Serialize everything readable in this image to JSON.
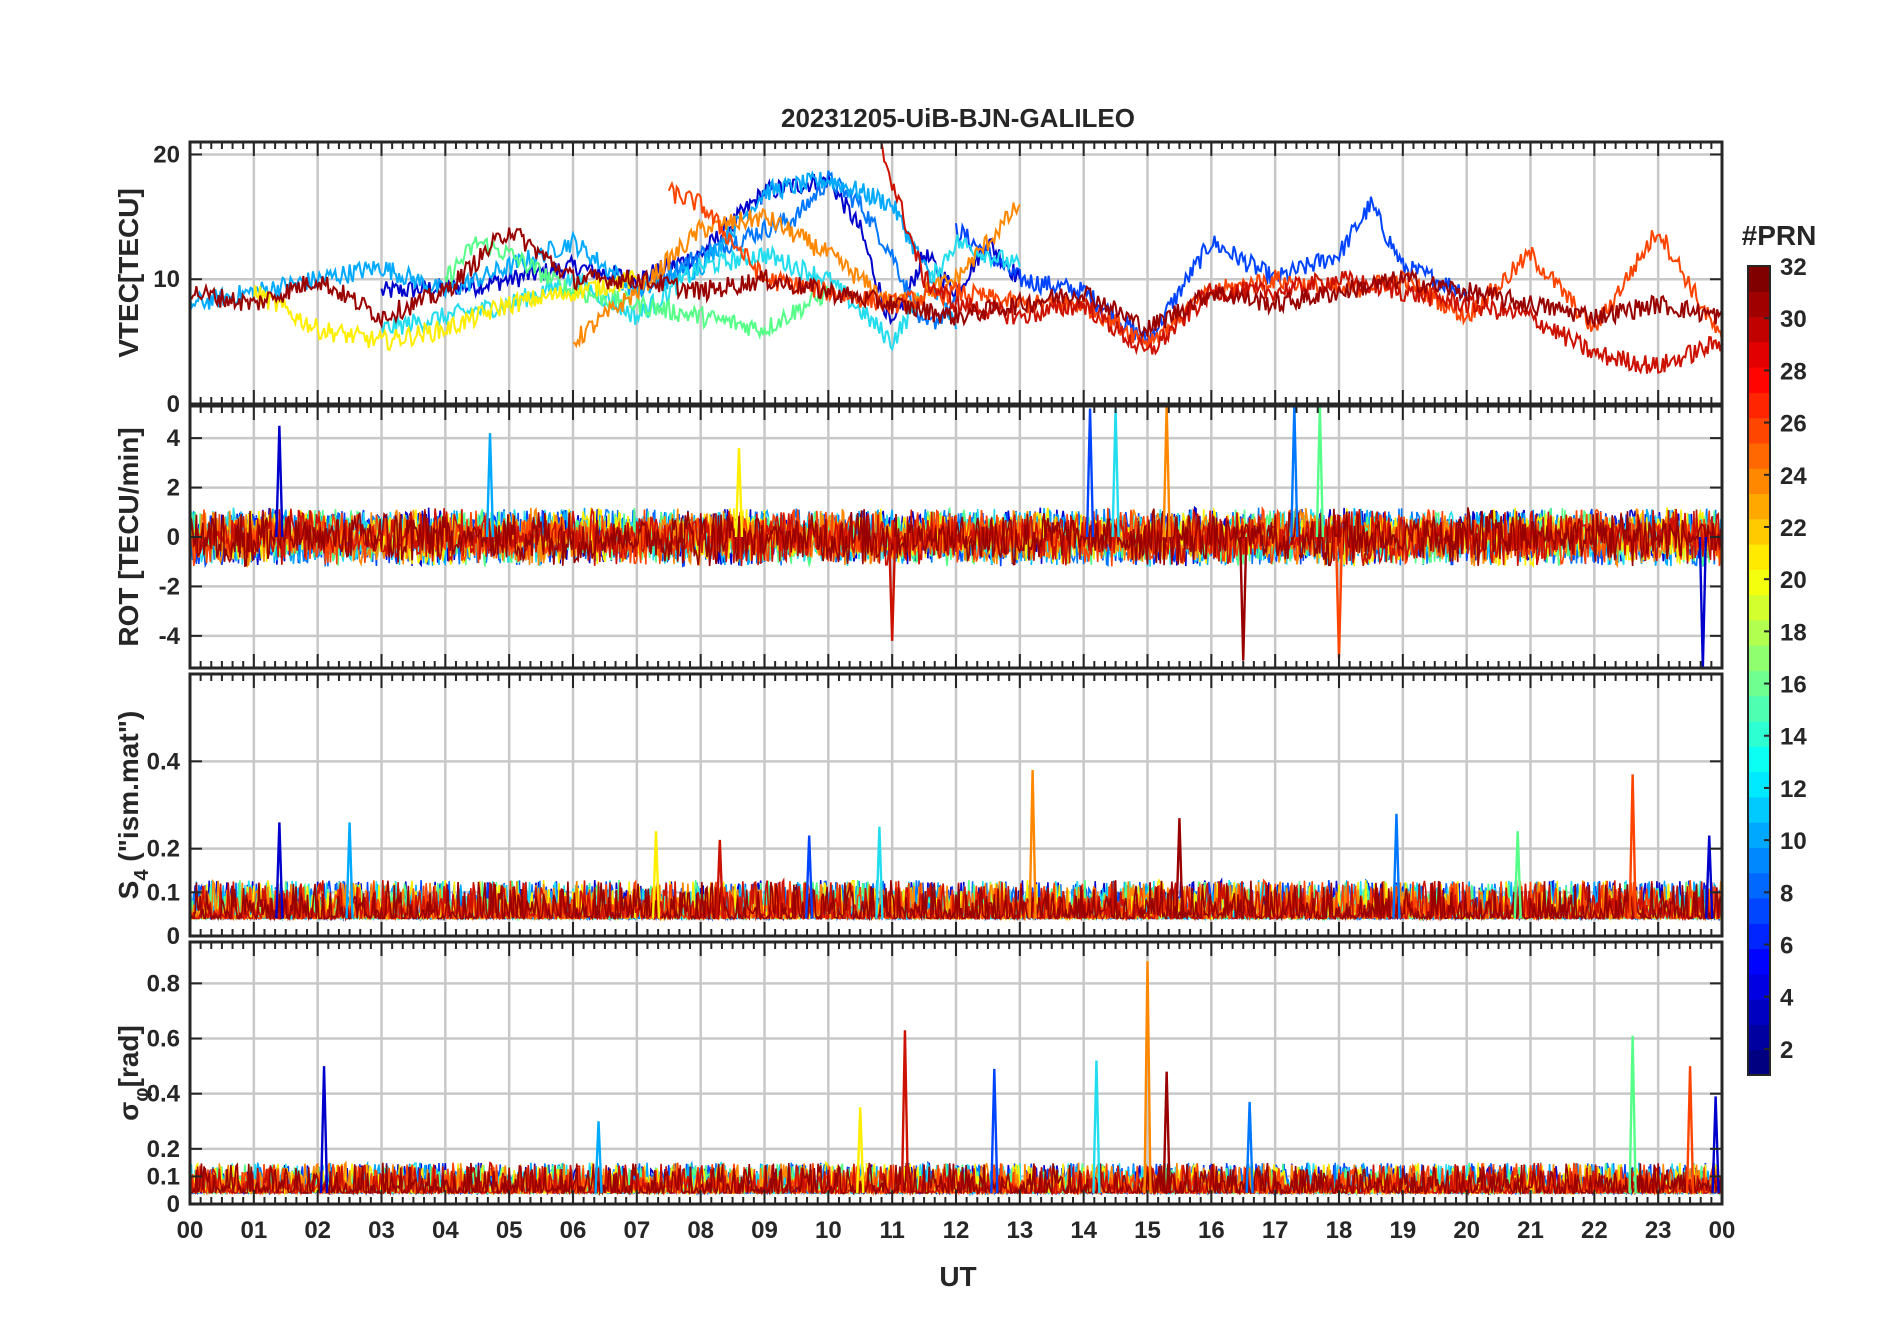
{
  "chart_data": {
    "type": "line",
    "title": "20231205-UiB-BJN-GALILEO",
    "xlabel": "UT",
    "x_tick_labels": [
      "00",
      "01",
      "02",
      "03",
      "04",
      "05",
      "06",
      "07",
      "08",
      "09",
      "10",
      "11",
      "12",
      "13",
      "14",
      "15",
      "16",
      "17",
      "18",
      "19",
      "20",
      "21",
      "22",
      "23",
      "00"
    ],
    "xlim": [
      0,
      24
    ],
    "grid": true,
    "colorbar": {
      "label": "#PRN",
      "range": [
        1,
        32
      ],
      "ticks": [
        2,
        4,
        6,
        8,
        10,
        12,
        14,
        16,
        18,
        20,
        22,
        24,
        26,
        28,
        30,
        32
      ],
      "colormap": "jet"
    },
    "panels": [
      {
        "ylabel": "VTEC[TECU]",
        "ylim": [
          0,
          21
        ],
        "yticks": [
          0,
          10,
          20
        ],
        "series": [
          {
            "prn": 2,
            "color": "#0000cc",
            "hours": [
              3,
              4.5,
              6,
              7,
              8,
              9,
              10,
              10.5,
              11,
              11.5,
              12,
              12.5,
              13
            ],
            "values": [
              9,
              9.5,
              11,
              10,
              12,
              17,
              18,
              14,
              6,
              12,
              9,
              13,
              10
            ]
          },
          {
            "prn": 5,
            "color": "#0044ff",
            "hours": [
              12,
              13,
              14,
              15,
              16,
              17,
              18,
              18.5,
              19,
              20
            ],
            "values": [
              14,
              10,
              9,
              5,
              13,
              10,
              12,
              16,
              11,
              9
            ]
          },
          {
            "prn": 7,
            "color": "#0077ff",
            "hours": [
              7,
              8,
              9,
              9.5,
              10,
              10.5,
              11,
              11.5,
              12
            ],
            "values": [
              9,
              12,
              14,
              15,
              18,
              16,
              12,
              6,
              8
            ]
          },
          {
            "prn": 10,
            "color": "#00aaff",
            "hours": [
              0,
              1,
              2,
              3,
              4,
              5,
              6,
              7,
              8,
              9,
              10,
              11,
              12
            ],
            "values": [
              8,
              9,
              10,
              11,
              9,
              11,
              13,
              9,
              11,
              17,
              18,
              16,
              6
            ]
          },
          {
            "prn": 12,
            "color": "#22ddee",
            "hours": [
              3,
              4,
              5,
              6,
              7,
              8,
              9,
              10,
              11,
              12,
              13
            ],
            "values": [
              6,
              7,
              8,
              10,
              7,
              11,
              12,
              10,
              5,
              13,
              11
            ]
          },
          {
            "prn": 15,
            "color": "#55ff88",
            "hours": [
              4,
              4.5,
              5,
              6,
              7,
              8,
              9,
              10
            ],
            "values": [
              10,
              13,
              12,
              9,
              8,
              7,
              6,
              9
            ]
          },
          {
            "prn": 20,
            "color": "#ffee00",
            "hours": [
              1,
              2,
              3,
              4,
              5,
              6,
              7
            ],
            "values": [
              9,
              6,
              5,
              6,
              8,
              9,
              10
            ]
          },
          {
            "prn": 24,
            "color": "#ff8800",
            "hours": [
              6,
              7,
              8,
              9,
              10,
              11,
              12,
              13
            ],
            "values": [
              5,
              9,
              14,
              15,
              12,
              8,
              10,
              16
            ]
          },
          {
            "prn": 26,
            "color": "#ff4400",
            "hours": [
              7.5,
              8,
              9,
              10,
              11,
              12,
              13,
              14,
              15,
              16,
              17,
              18,
              19,
              20,
              21,
              22,
              23,
              24
            ],
            "values": [
              17,
              16,
              10,
              9,
              8,
              9,
              8,
              8,
              5,
              9,
              10,
              9,
              10,
              7,
              12,
              6,
              14,
              5
            ]
          },
          {
            "prn": 29,
            "color": "#cc1100",
            "hours": [
              10.8,
              11.5,
              12,
              13,
              14,
              15,
              16,
              17,
              18,
              19,
              20,
              21,
              22,
              23,
              24
            ],
            "values": [
              21,
              10,
              8,
              7,
              8,
              4,
              9,
              9,
              10,
              9,
              8,
              7,
              4,
              3,
              5
            ]
          },
          {
            "prn": 31,
            "color": "#990000",
            "hours": [
              0,
              1,
              2,
              3,
              4,
              5,
              6,
              7,
              8,
              9,
              10,
              11,
              12,
              13,
              14,
              15,
              16,
              17,
              18,
              19,
              20,
              21,
              22,
              23,
              24
            ],
            "values": [
              9,
              8,
              10,
              7,
              9,
              14,
              10,
              10,
              9,
              10,
              9,
              8,
              7,
              8,
              9,
              6,
              9,
              8,
              9,
              10,
              9,
              8,
              7,
              8,
              7
            ]
          }
        ]
      },
      {
        "ylabel": "ROT [TECU/min]",
        "ylim": [
          -5.3,
          5.3
        ],
        "yticks": [
          -4,
          -2,
          0,
          2,
          4
        ],
        "noise_amplitude": 1.2,
        "spikes": [
          {
            "hour": 1.4,
            "value": 4.5
          },
          {
            "hour": 4.7,
            "value": 4.2
          },
          {
            "hour": 8.6,
            "value": 3.6
          },
          {
            "hour": 11.0,
            "value": -4.2
          },
          {
            "hour": 14.1,
            "value": 5.2
          },
          {
            "hour": 14.5,
            "value": 5.2
          },
          {
            "hour": 15.3,
            "value": 5.3
          },
          {
            "hour": 16.5,
            "value": -5.0
          },
          {
            "hour": 17.3,
            "value": 5.3
          },
          {
            "hour": 17.7,
            "value": 5.3
          },
          {
            "hour": 18.0,
            "value": -4.9
          },
          {
            "hour": 23.7,
            "value": -5.3
          }
        ]
      },
      {
        "ylabel": "S4 (\"ism.mat\")",
        "ylabel_main": "S",
        "ylabel_sub": "4",
        "ylabel_rest": " (\"ism.mat\")",
        "ylim": [
          0,
          0.6
        ],
        "yticks": [
          0,
          0.1,
          0.2,
          0.4
        ],
        "baseline": 0.04,
        "noise_amplitude": 0.04,
        "spikes": [
          {
            "hour": 1.4,
            "value": 0.26
          },
          {
            "hour": 2.5,
            "value": 0.26
          },
          {
            "hour": 7.3,
            "value": 0.24
          },
          {
            "hour": 8.3,
            "value": 0.22
          },
          {
            "hour": 9.7,
            "value": 0.23
          },
          {
            "hour": 10.8,
            "value": 0.25
          },
          {
            "hour": 13.2,
            "value": 0.38
          },
          {
            "hour": 15.5,
            "value": 0.27
          },
          {
            "hour": 18.9,
            "value": 0.28
          },
          {
            "hour": 20.8,
            "value": 0.24
          },
          {
            "hour": 22.6,
            "value": 0.37
          },
          {
            "hour": 23.8,
            "value": 0.23
          }
        ]
      },
      {
        "ylabel": "σφ[rad]",
        "ylabel_main": "σ",
        "ylabel_sub": "φ",
        "ylabel_rest": "[rad]",
        "ylim": [
          0,
          0.95
        ],
        "yticks": [
          0,
          0.1,
          0.2,
          0.4,
          0.6,
          0.8
        ],
        "baseline": 0.04,
        "noise_amplitude": 0.05,
        "spikes": [
          {
            "hour": 2.1,
            "value": 0.5
          },
          {
            "hour": 6.4,
            "value": 0.3
          },
          {
            "hour": 10.5,
            "value": 0.35
          },
          {
            "hour": 11.2,
            "value": 0.63
          },
          {
            "hour": 12.6,
            "value": 0.49
          },
          {
            "hour": 14.2,
            "value": 0.52
          },
          {
            "hour": 15.0,
            "value": 0.88
          },
          {
            "hour": 15.3,
            "value": 0.48
          },
          {
            "hour": 16.6,
            "value": 0.37
          },
          {
            "hour": 22.6,
            "value": 0.61
          },
          {
            "hour": 23.5,
            "value": 0.5
          },
          {
            "hour": 23.9,
            "value": 0.39
          }
        ]
      }
    ]
  }
}
